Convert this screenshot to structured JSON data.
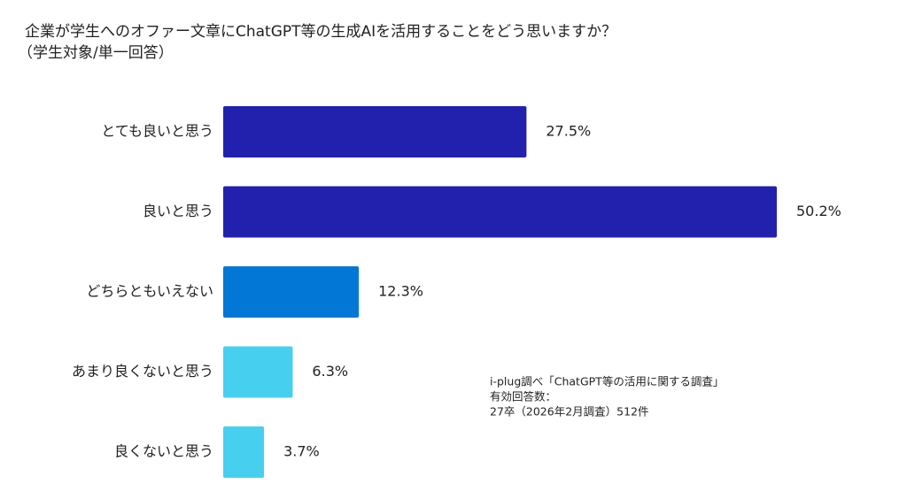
{
  "chart_data": {
    "type": "hbar",
    "title": "企業が学生へのオファー文章にChatGPT等の生成AIを活用することをどう思いますか？",
    "subtitle": "（学生対象/単一回答）",
    "categories": [
      "とても良いと思う",
      "良いと思う",
      "どちらともいえない",
      "あまり良くないと思う",
      "良くないと思う"
    ],
    "values": [
      27.5,
      50.2,
      12.3,
      6.3,
      3.7
    ],
    "value_labels": [
      "27.5%",
      "50.2%",
      "12.3%",
      "6.3%",
      "3.7%"
    ],
    "colors": [
      "#2121ad",
      "#2121ad",
      "#0377d5",
      "#46cfef",
      "#46cfef"
    ],
    "annotations": [
      "i-plug調べ「ChatGPT等の活用に関する調査」",
      "有効回答数：",
      "27卒（2026年2月調査）512件"
    ]
  }
}
